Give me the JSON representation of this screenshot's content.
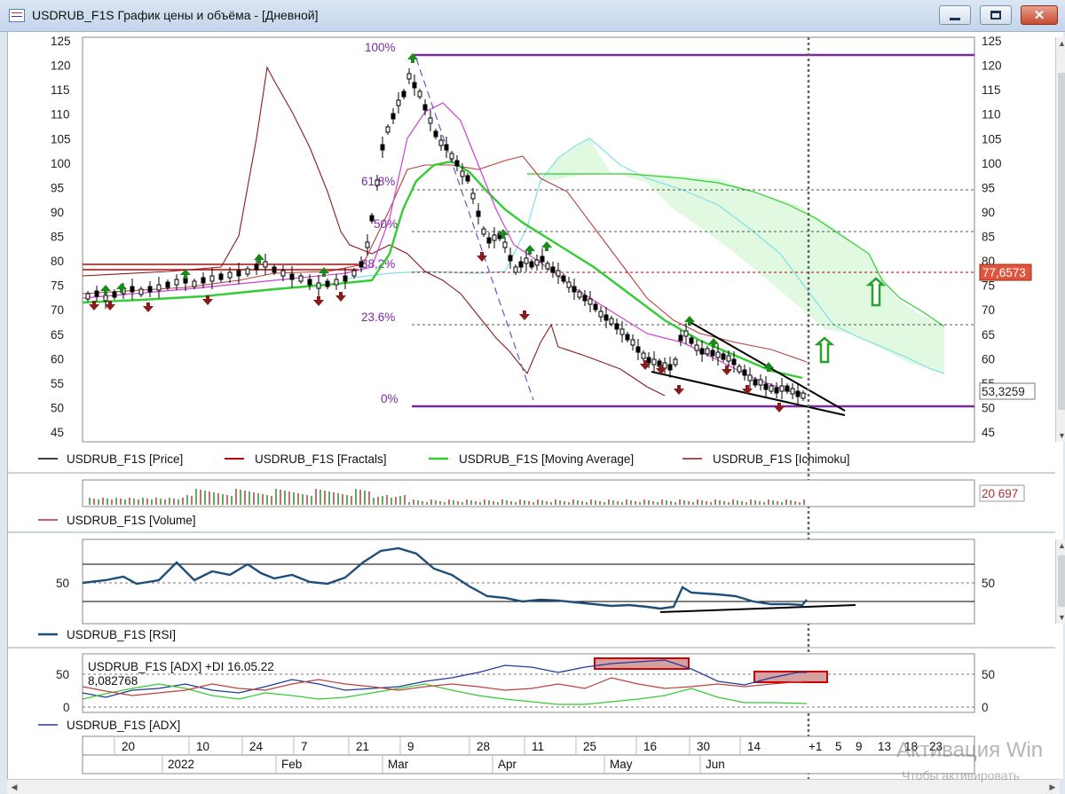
{
  "window": {
    "title": "USDRUB_F1S График цены и объёма - [Дневной]",
    "minimize_glyph": "minimize-icon",
    "maximize_glyph": "maximize-icon",
    "close_glyph": "✕"
  },
  "price_panel": {
    "y_ticks": [
      "125",
      "120",
      "115",
      "110",
      "105",
      "100",
      "95",
      "90",
      "85",
      "80",
      "75",
      "70",
      "65",
      "60",
      "55",
      "50",
      "45"
    ],
    "price_badge": "77,6573",
    "last_price_label": "53,3259",
    "fib_levels": [
      "100%",
      "61,8%",
      "50%",
      "38,2%",
      "23.6%",
      "0%"
    ],
    "legend": [
      {
        "label": "USDRUB_F1S [Price]",
        "color": "#000000"
      },
      {
        "label": "USDRUB_F1S [Fractals]",
        "color": "#c00000"
      },
      {
        "label": "USDRUB_F1S [Moving Average]",
        "color": "#33cc33"
      },
      {
        "label": "USDRUB_F1S [Ichimoku]",
        "color": "#8b1a1a"
      }
    ]
  },
  "volume_panel": {
    "badge": "20 697",
    "legend": "USDRUB_F1S [Volume]"
  },
  "rsi_panel": {
    "tick": "50",
    "legend": "USDRUB_F1S [RSI]"
  },
  "adx_panel": {
    "ticks": [
      "50",
      "0"
    ],
    "caption_line1": "USDRUB_F1S [ADX] +DI 16.05.22",
    "caption_line2": "8,082768",
    "legend": "USDRUB_F1S [ADX]"
  },
  "time_axis": {
    "day_labels": [
      "20",
      "10",
      "24",
      "7",
      "21",
      "9",
      "28",
      "11",
      "25",
      "16",
      "30",
      "14",
      "+1",
      "5",
      "9",
      "13",
      "18",
      "23"
    ],
    "period_labels": [
      "2022",
      "Feb",
      "Mar",
      "Apr",
      "May",
      "Jun"
    ]
  },
  "watermark": {
    "line1": "Активация Win",
    "line2": "Чтобы активировать"
  },
  "colors": {
    "price": "#000000",
    "fractal_up": "#1a8a1a",
    "fractal_down": "#8b1a1a",
    "moving_average": "#33cc33",
    "ichimoku": "#8b1a1a",
    "cloud": "#7fe0e8",
    "fib": "#7a2aa0",
    "rsi": "#1f4e79"
  }
}
